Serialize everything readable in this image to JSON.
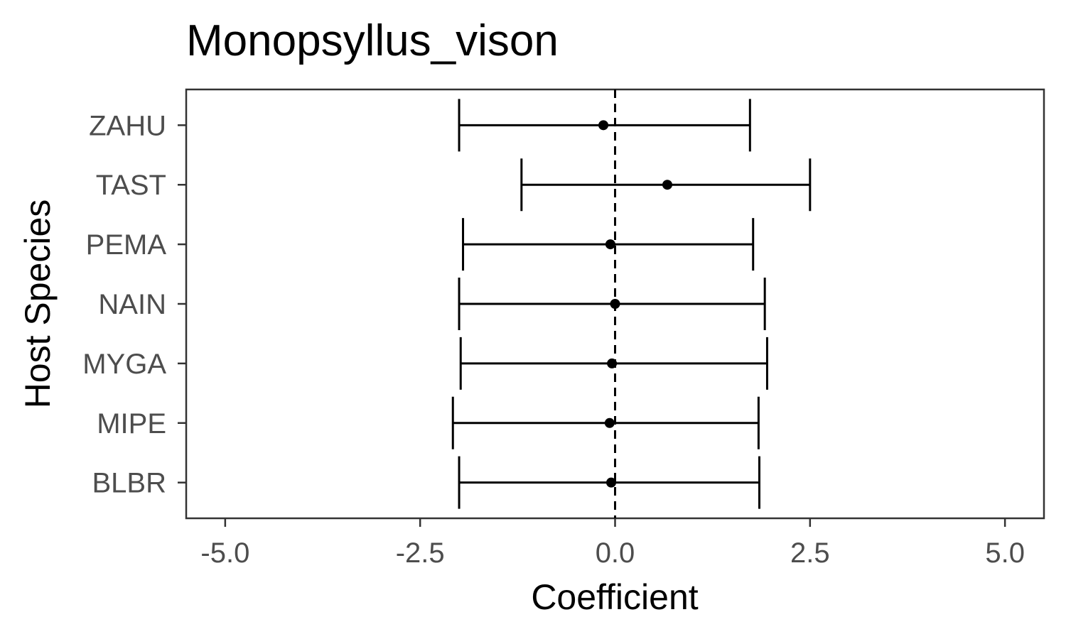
{
  "chart_data": {
    "type": "scatter",
    "title": "Monopsyllus_vison",
    "xlabel": "Coefficient",
    "ylabel": "Host Species",
    "xlim": [
      -5.5,
      5.5
    ],
    "xticks": [
      -5.0,
      -2.5,
      0.0,
      2.5,
      5.0
    ],
    "xtick_labels": [
      "-5.0",
      "-2.5",
      "0.0",
      "2.5",
      "5.0"
    ],
    "reference_line": 0,
    "grid": false,
    "legend": "none",
    "categories": [
      "ZAHU",
      "TAST",
      "PEMA",
      "NAIN",
      "MYGA",
      "MIPE",
      "BLBR"
    ],
    "estimates": [
      -0.15,
      0.67,
      -0.06,
      0.0,
      -0.04,
      -0.07,
      -0.05
    ],
    "lower": [
      -2.0,
      -1.2,
      -1.95,
      -2.0,
      -1.98,
      -2.08,
      -2.0
    ],
    "upper": [
      1.73,
      2.5,
      1.77,
      1.92,
      1.95,
      1.84,
      1.85
    ],
    "colors": {
      "points": "#000000",
      "axis": "#333333",
      "tick_text": "#4d4d4d"
    }
  }
}
